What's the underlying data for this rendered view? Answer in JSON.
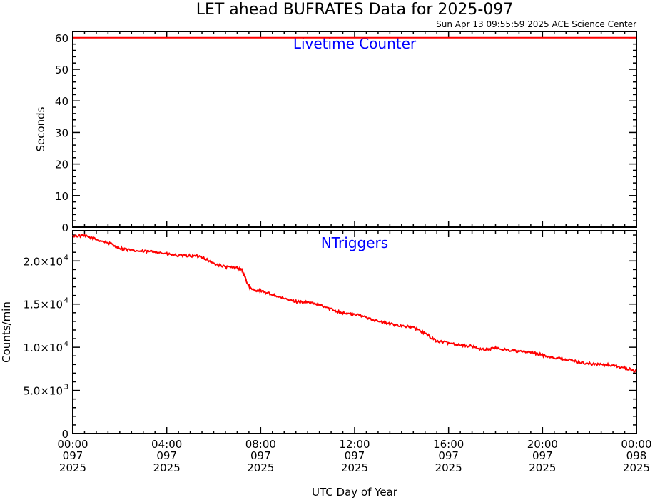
{
  "title": "LET ahead BUFRATES Data for 2025-097",
  "timestamp": "Sun Apr 13 09:55:59 2025 ACE Science Center",
  "xlabel": "UTC Day of Year",
  "x_ticks": [
    {
      "hour": 0,
      "time": "00:00",
      "doy": "097",
      "year": "2025"
    },
    {
      "hour": 4,
      "time": "04:00",
      "doy": "097",
      "year": "2025"
    },
    {
      "hour": 8,
      "time": "08:00",
      "doy": "097",
      "year": "2025"
    },
    {
      "hour": 12,
      "time": "12:00",
      "doy": "097",
      "year": "2025"
    },
    {
      "hour": 16,
      "time": "16:00",
      "doy": "097",
      "year": "2025"
    },
    {
      "hour": 20,
      "time": "20:00",
      "doy": "097",
      "year": "2025"
    },
    {
      "hour": 24,
      "time": "00:00",
      "doy": "098",
      "year": "2025"
    }
  ],
  "colors": {
    "series": "#ff0000",
    "panel_label": "#0000ff",
    "axis": "#000000"
  },
  "chart_data": [
    {
      "type": "line",
      "panel_label": "Livetime Counter",
      "ylabel": "Seconds",
      "ylim": [
        0,
        62
      ],
      "xlim": [
        0,
        24
      ],
      "y_ticks": [
        {
          "value": 0,
          "label": "0"
        },
        {
          "value": 10,
          "label": "10"
        },
        {
          "value": 20,
          "label": "20"
        },
        {
          "value": 30,
          "label": "30"
        },
        {
          "value": 40,
          "label": "40"
        },
        {
          "value": 50,
          "label": "50"
        },
        {
          "value": 60,
          "label": "60"
        }
      ],
      "series": [
        {
          "x": [
            0,
            24
          ],
          "y": [
            60,
            60
          ]
        }
      ]
    },
    {
      "type": "line",
      "panel_label": "NTriggers",
      "ylabel": "Counts/min",
      "ylim": [
        0,
        23500
      ],
      "xlim": [
        0,
        24
      ],
      "y_ticks": [
        {
          "value": 0,
          "mantissa": "0",
          "exponent": ""
        },
        {
          "value": 5000,
          "mantissa": "5.0×10",
          "exponent": "3"
        },
        {
          "value": 10000,
          "mantissa": "1.0×10",
          "exponent": "4"
        },
        {
          "value": 15000,
          "mantissa": "1.5×10",
          "exponent": "4"
        },
        {
          "value": 20000,
          "mantissa": "2.0×10",
          "exponent": "4"
        }
      ],
      "series": [
        {
          "x": [
            0,
            0.5,
            1,
            1.5,
            2,
            2.5,
            3,
            3.5,
            4,
            4.5,
            5,
            5.5,
            6,
            6.5,
            7,
            7.2,
            7.4,
            7.6,
            8,
            8.5,
            9,
            9.5,
            10,
            10.5,
            11,
            11.5,
            12,
            12.5,
            13,
            13.5,
            14,
            14.5,
            15,
            15.5,
            16,
            16.5,
            17,
            17.5,
            18,
            18.5,
            19,
            19.5,
            20,
            20.5,
            21,
            21.5,
            22,
            22.5,
            23,
            23.5,
            24
          ],
          "y": [
            22900,
            22900,
            22500,
            22100,
            21500,
            21200,
            21100,
            21100,
            20800,
            20600,
            20600,
            20500,
            19700,
            19300,
            19200,
            19000,
            17600,
            16700,
            16500,
            16100,
            15600,
            15300,
            15200,
            14900,
            14400,
            14000,
            13800,
            13500,
            13000,
            12700,
            12500,
            12300,
            11600,
            10700,
            10500,
            10300,
            10100,
            9700,
            9900,
            9700,
            9500,
            9400,
            9100,
            8800,
            8600,
            8300,
            8100,
            8000,
            7900,
            7600,
            7200
          ]
        }
      ]
    }
  ]
}
